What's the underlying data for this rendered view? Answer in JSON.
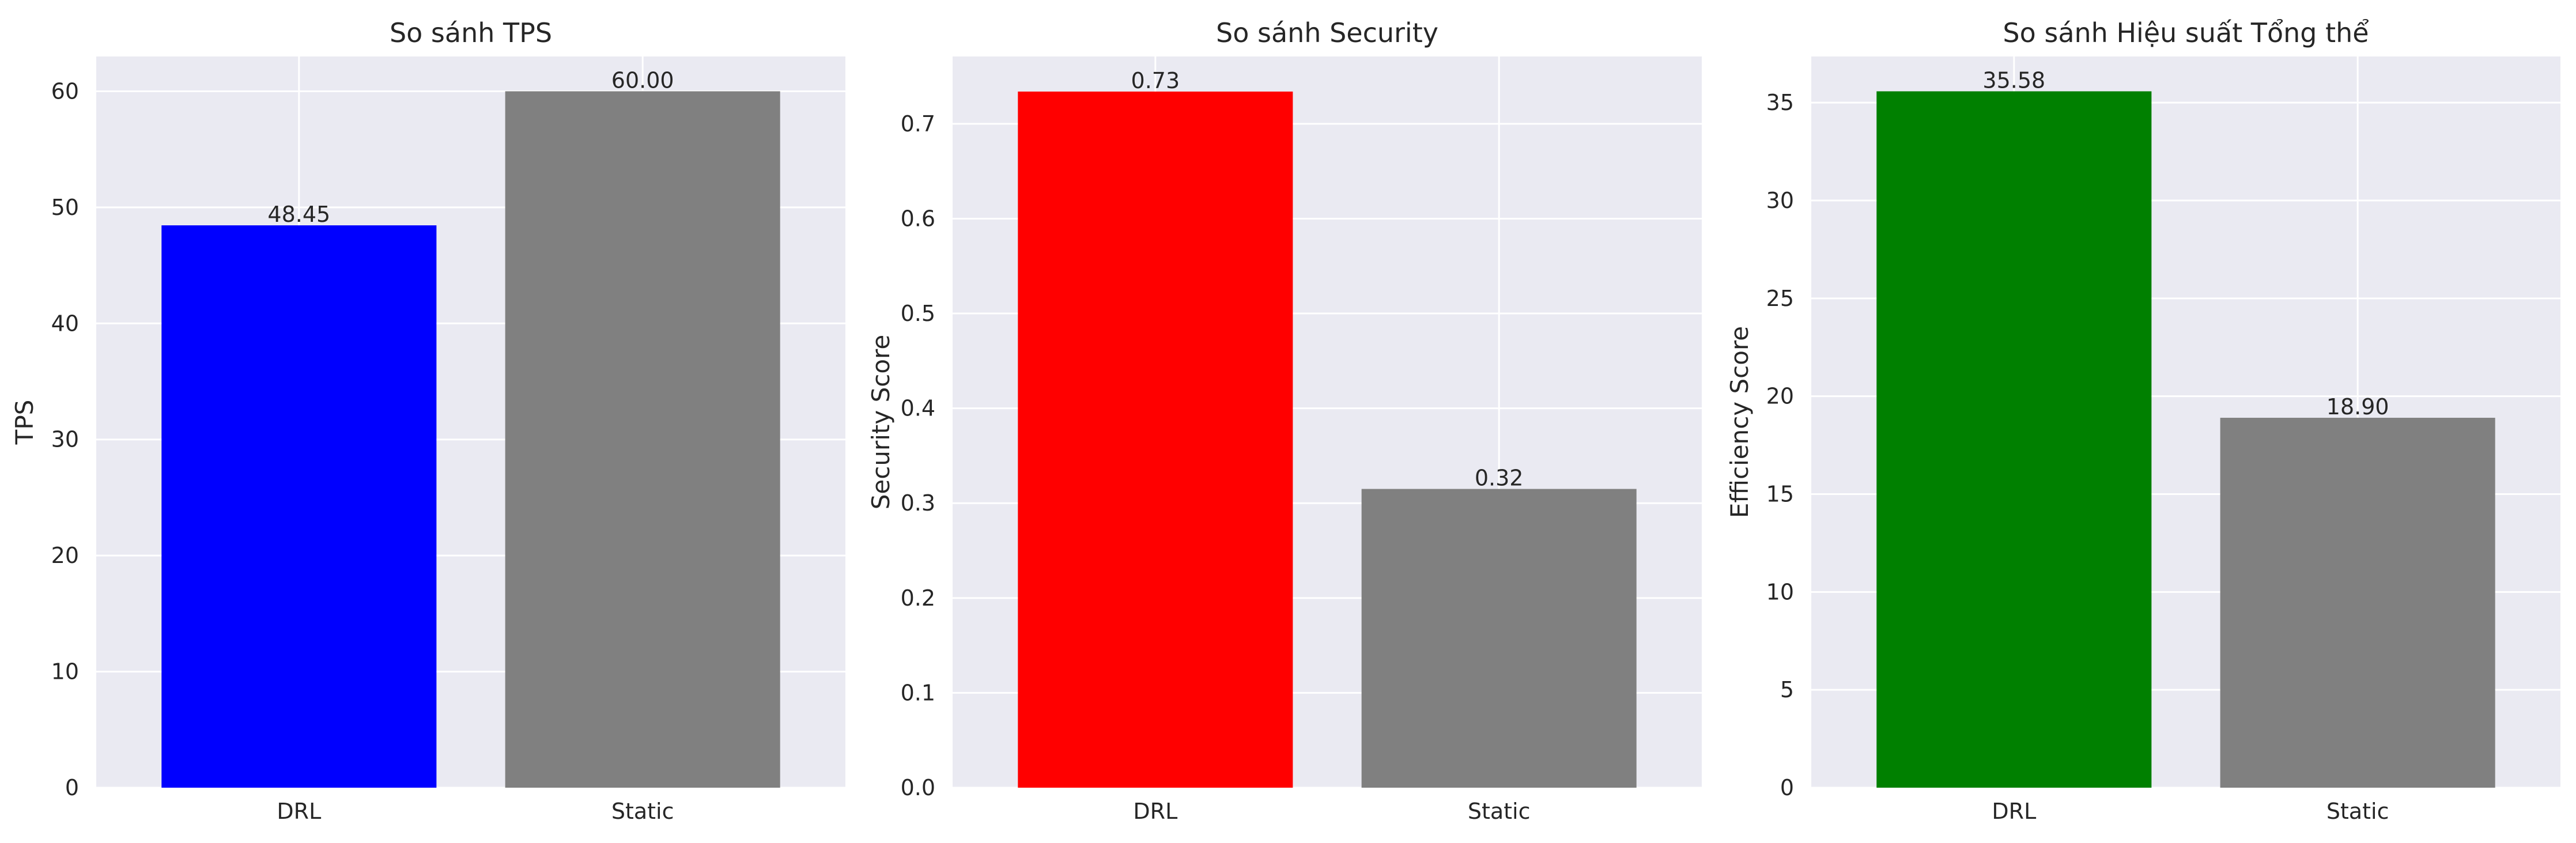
{
  "chart_data": [
    {
      "type": "bar",
      "title": "So sánh TPS",
      "xlabel": "",
      "ylabel": "TPS",
      "categories": [
        "DRL",
        "Static"
      ],
      "values": [
        48.45,
        60.0
      ],
      "value_labels": [
        "48.45",
        "60.00"
      ],
      "colors": [
        "#0000ff",
        "#808080"
      ],
      "ylim": [
        0,
        63
      ],
      "yticks": [
        0,
        10,
        20,
        30,
        40,
        50,
        60
      ],
      "ytick_labels": [
        "0",
        "10",
        "20",
        "30",
        "40",
        "50",
        "60"
      ],
      "grid": true
    },
    {
      "type": "bar",
      "title": "So sánh Security",
      "xlabel": "",
      "ylabel": "Security Score",
      "categories": [
        "DRL",
        "Static"
      ],
      "values": [
        0.734,
        0.315
      ],
      "value_labels": [
        "0.73",
        "0.32"
      ],
      "colors": [
        "#ff0000",
        "#808080"
      ],
      "ylim": [
        0,
        0.771
      ],
      "yticks": [
        0.0,
        0.1,
        0.2,
        0.3,
        0.4,
        0.5,
        0.6,
        0.7
      ],
      "ytick_labels": [
        "0.0",
        "0.1",
        "0.2",
        "0.3",
        "0.4",
        "0.5",
        "0.6",
        "0.7"
      ],
      "grid": true
    },
    {
      "type": "bar",
      "title": "So sánh Hiệu suất Tổng thể",
      "xlabel": "",
      "ylabel": "Efficiency Score",
      "categories": [
        "DRL",
        "Static"
      ],
      "values": [
        35.58,
        18.9
      ],
      "value_labels": [
        "35.58",
        "18.90"
      ],
      "colors": [
        "#008000",
        "#808080"
      ],
      "ylim": [
        0,
        37.36
      ],
      "yticks": [
        0,
        5,
        10,
        15,
        20,
        25,
        30,
        35
      ],
      "ytick_labels": [
        "0",
        "5",
        "10",
        "15",
        "20",
        "25",
        "30",
        "35"
      ],
      "grid": true
    }
  ]
}
